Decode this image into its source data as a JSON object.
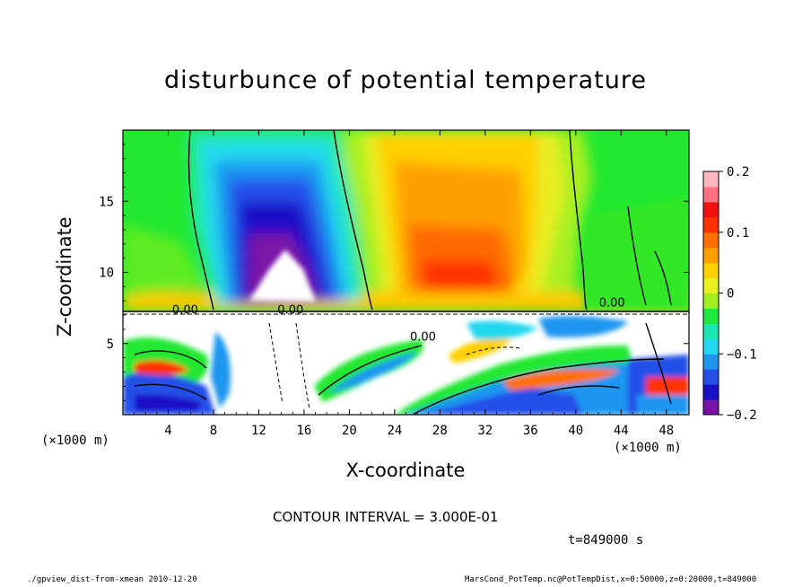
{
  "chart_data": {
    "type": "heatmap",
    "title": "disturbunce of potential temperature",
    "xlabel": "X-coordinate",
    "ylabel": "Z-coordinate",
    "x_unit_label": "(×1000 m)",
    "xlim": [
      0,
      50
    ],
    "ylim": [
      0,
      20
    ],
    "x_ticks": [
      4,
      8,
      12,
      16,
      20,
      24,
      28,
      32,
      36,
      40,
      44,
      48
    ],
    "y_ticks": [
      5,
      10,
      15
    ],
    "colorbar": {
      "range": [
        -0.2,
        0.2
      ],
      "ticks": [
        "0.2",
        "0.1",
        "0",
        "−0.1",
        "−0.2"
      ],
      "tick_values": [
        0.2,
        0.1,
        0,
        -0.1,
        -0.2
      ],
      "colors": [
        "#7a12a8",
        "#1a10c8",
        "#2450e8",
        "#1e96f0",
        "#22d8f0",
        "#18e8b0",
        "#20e840",
        "#a0f020",
        "#e8f020",
        "#ffd000",
        "#ffa000",
        "#ff7000",
        "#ff3000",
        "#f01010",
        "#ff7080",
        "#ffb8c0"
      ]
    },
    "contour_labels": [
      {
        "text": "0.00",
        "x": 5.5,
        "z": 7.1
      },
      {
        "text": "0.00",
        "x": 14.8,
        "z": 7.1
      },
      {
        "text": "0.00",
        "x": 26.5,
        "z": 5.2
      },
      {
        "text": "0.00",
        "x": 43.2,
        "z": 7.6
      }
    ],
    "contour_interval": "CONTOUR INTERVAL = 3.000E-01",
    "time_label": "t=849000 s"
  },
  "footer": {
    "left": "./gpview_dist-from-xmean   2010-12-20",
    "right": "MarsCond_PotTemp.nc@PotTempDist,x=0:50000,z=0:20000,t=849000"
  }
}
